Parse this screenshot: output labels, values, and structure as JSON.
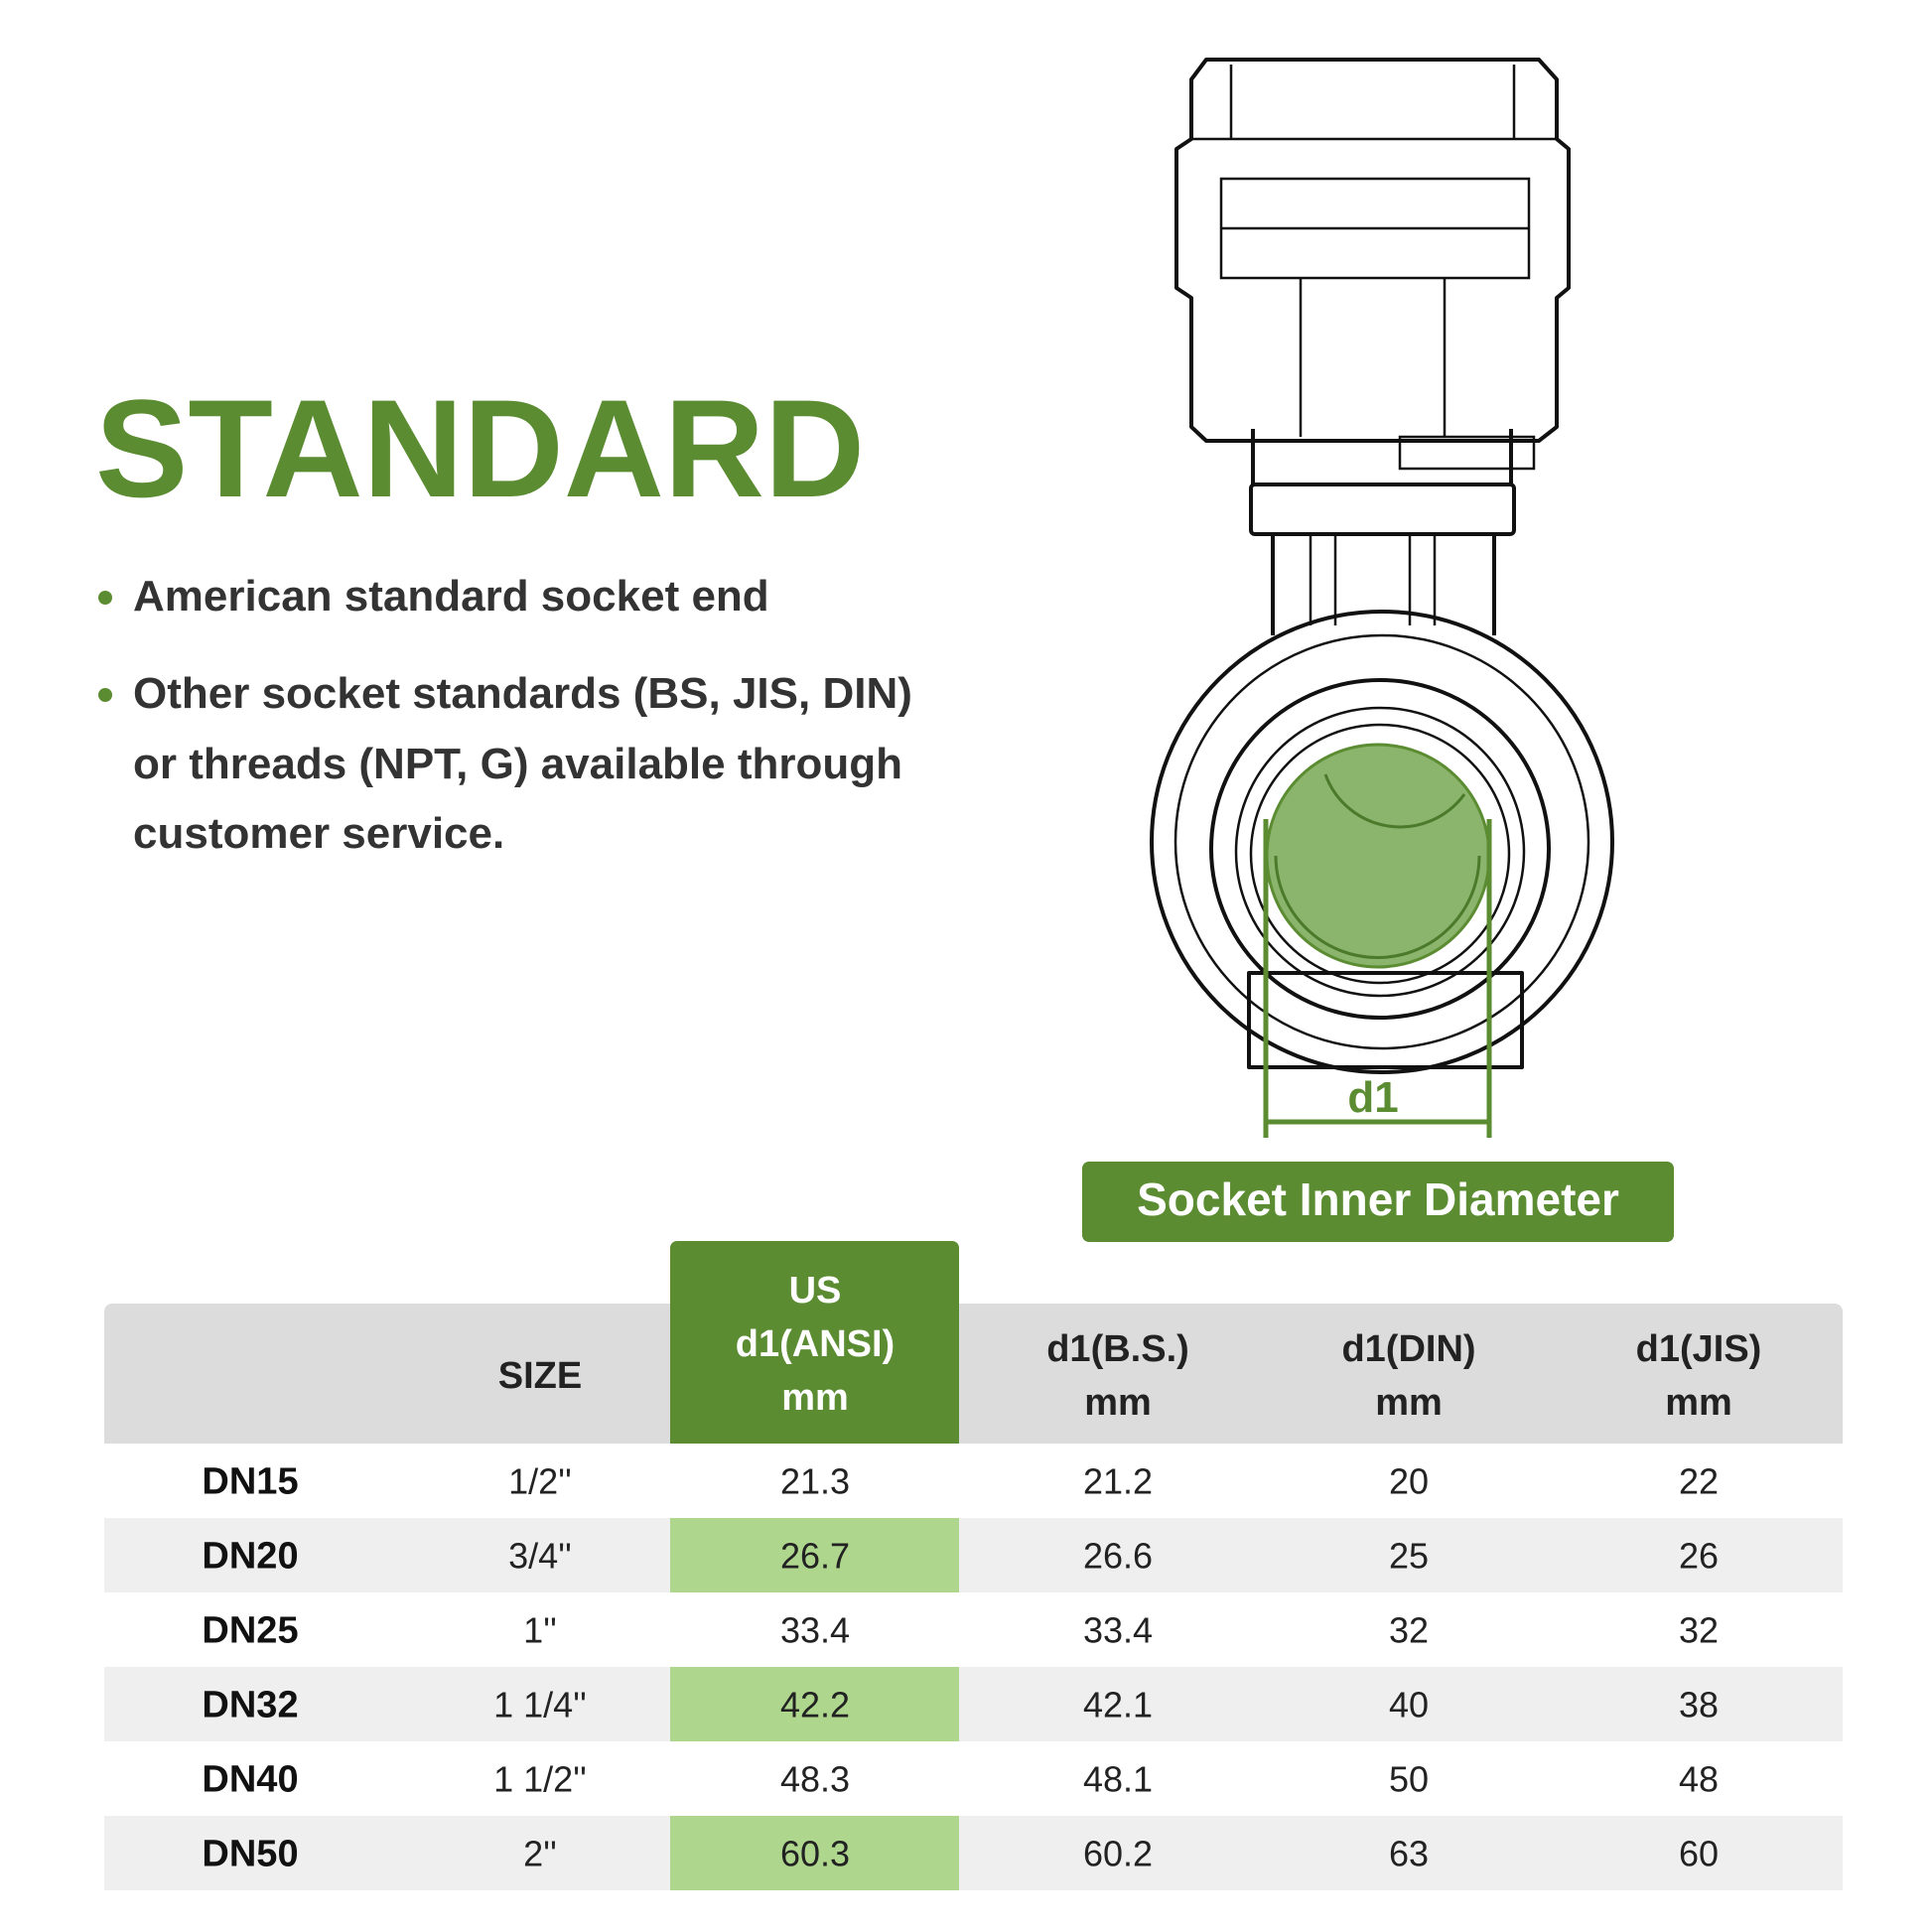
{
  "header": {
    "title": "STANDARD"
  },
  "bullets": [
    "American standard socket end",
    [
      "Other socket standards (BS, JIS, DIN)",
      "or threads (NPT, G) available through",
      "customer service."
    ]
  ],
  "diagram": {
    "dimension_label": "d1",
    "badge": "Socket Inner Diameter"
  },
  "table": {
    "columns": [
      [
        "SIZE"
      ],
      [
        "US",
        "d1(ANSI)",
        "mm"
      ],
      [
        "d1(B.S.)",
        "mm"
      ],
      [
        "d1(DIN)",
        "mm"
      ],
      [
        "d1(JIS)",
        "mm"
      ]
    ],
    "rows": [
      {
        "label": "DN15",
        "cells": [
          "1/2''",
          "21.3",
          "21.2",
          "20",
          "22"
        ]
      },
      {
        "label": "DN20",
        "cells": [
          "3/4''",
          "26.7",
          "26.6",
          "25",
          "26"
        ]
      },
      {
        "label": "DN25",
        "cells": [
          "1''",
          "33.4",
          "33.4",
          "32",
          "32"
        ]
      },
      {
        "label": "DN32",
        "cells": [
          "1 1/4''",
          "42.2",
          "42.1",
          "40",
          "38"
        ]
      },
      {
        "label": "DN40",
        "cells": [
          "1 1/2''",
          "48.3",
          "48.1",
          "50",
          "48"
        ]
      },
      {
        "label": "DN50",
        "cells": [
          "2''",
          "60.3",
          "60.2",
          "63",
          "60"
        ]
      }
    ]
  }
}
